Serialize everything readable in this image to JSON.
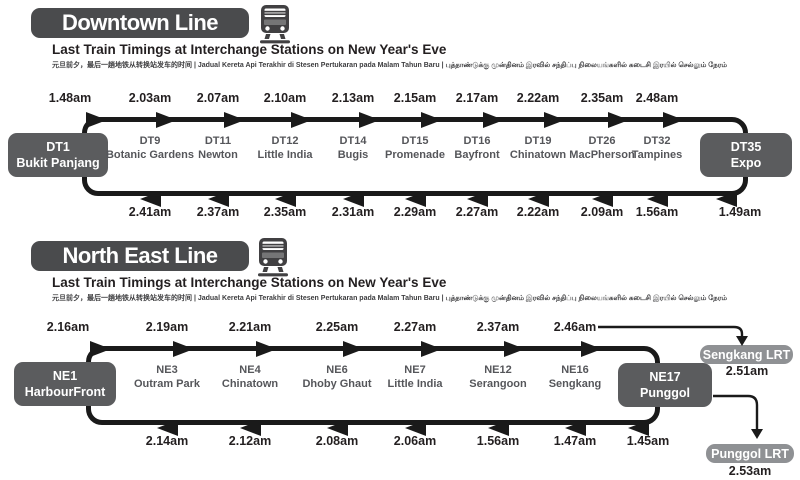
{
  "colors": {
    "title_box": "#4a4b4d",
    "terminal_box": "#5b5c5e",
    "lrt_badge": "#8f9194",
    "route_line": "#1a1a1a",
    "station_text": "#55565a",
    "timing_text": "#231f20"
  },
  "lines": [
    {
      "title": "Downtown Line",
      "subtitle": "Last Train Timings at Interchange Stations on New Year's Eve",
      "subtitle_translations": "元旦前夕，最后一趟地铁从转换站发车的时间  |  Jadual Kereta Api Terakhir di Stesen Pertukaran pada Malam Tahun Baru  |  புத்தாண்டுக்கு முன்தினம் இரவில் சந்திப்பு நிலையங்களில் கடைசி இரயில் செல்லும் நேரம்",
      "stations": [
        {
          "code": "DT1",
          "name": "Bukit Panjang",
          "terminal": true,
          "last_train_forward": "1.48am",
          "last_train_return": null
        },
        {
          "code": "DT9",
          "name": "Botanic Gardens",
          "terminal": false,
          "last_train_forward": "2.03am",
          "last_train_return": "2.41am"
        },
        {
          "code": "DT11",
          "name": "Newton",
          "terminal": false,
          "last_train_forward": "2.07am",
          "last_train_return": "2.37am"
        },
        {
          "code": "DT12",
          "name": "Little India",
          "terminal": false,
          "last_train_forward": "2.10am",
          "last_train_return": "2.35am"
        },
        {
          "code": "DT14",
          "name": "Bugis",
          "terminal": false,
          "last_train_forward": "2.13am",
          "last_train_return": "2.31am"
        },
        {
          "code": "DT15",
          "name": "Promenade",
          "terminal": false,
          "last_train_forward": "2.15am",
          "last_train_return": "2.29am"
        },
        {
          "code": "DT16",
          "name": "Bayfront",
          "terminal": false,
          "last_train_forward": "2.17am",
          "last_train_return": "2.27am"
        },
        {
          "code": "DT19",
          "name": "Chinatown",
          "terminal": false,
          "last_train_forward": "2.22am",
          "last_train_return": "2.22am"
        },
        {
          "code": "DT26",
          "name": "MacPherson",
          "terminal": false,
          "last_train_forward": "2.35am",
          "last_train_return": "2.09am"
        },
        {
          "code": "DT32",
          "name": "Tampines",
          "terminal": false,
          "last_train_forward": "2.48am",
          "last_train_return": "1.56am"
        },
        {
          "code": "DT35",
          "name": "Expo",
          "terminal": true,
          "last_train_forward": null,
          "last_train_return": "1.49am"
        }
      ],
      "branches": []
    },
    {
      "title": "North East Line",
      "subtitle": "Last Train Timings at Interchange Stations on New Year's Eve",
      "subtitle_translations": "元旦前夕，最后一趟地铁从转换站发车的时间  |  Jadual Kereta Api Terakhir di Stesen Pertukaran pada Malam Tahun Baru  |  புத்தாண்டுக்கு முன்தினம் இரவில் சந்திப்பு நிலையங்களில் கடைசி இரயில் செல்லும் நேரம்",
      "stations": [
        {
          "code": "NE1",
          "name": "HarbourFront",
          "terminal": true,
          "last_train_forward": "2.16am",
          "last_train_return": null
        },
        {
          "code": "NE3",
          "name": "Outram Park",
          "terminal": false,
          "last_train_forward": "2.19am",
          "last_train_return": "2.14am"
        },
        {
          "code": "NE4",
          "name": "Chinatown",
          "terminal": false,
          "last_train_forward": "2.21am",
          "last_train_return": "2.12am"
        },
        {
          "code": "NE6",
          "name": "Dhoby Ghaut",
          "terminal": false,
          "last_train_forward": "2.25am",
          "last_train_return": "2.08am"
        },
        {
          "code": "NE7",
          "name": "Little India",
          "terminal": false,
          "last_train_forward": "2.27am",
          "last_train_return": "2.06am"
        },
        {
          "code": "NE12",
          "name": "Serangoon",
          "terminal": false,
          "last_train_forward": "2.37am",
          "last_train_return": "1.56am"
        },
        {
          "code": "NE16",
          "name": "Sengkang",
          "terminal": false,
          "last_train_forward": "2.46am",
          "last_train_return": "1.47am"
        },
        {
          "code": "NE17",
          "name": "Punggol",
          "terminal": true,
          "last_train_forward": null,
          "last_train_return": "1.45am"
        }
      ],
      "branches": [
        {
          "name": "Sengkang LRT",
          "time": "2.51am"
        },
        {
          "name": "Punggol LRT",
          "time": "2.53am"
        }
      ]
    }
  ]
}
